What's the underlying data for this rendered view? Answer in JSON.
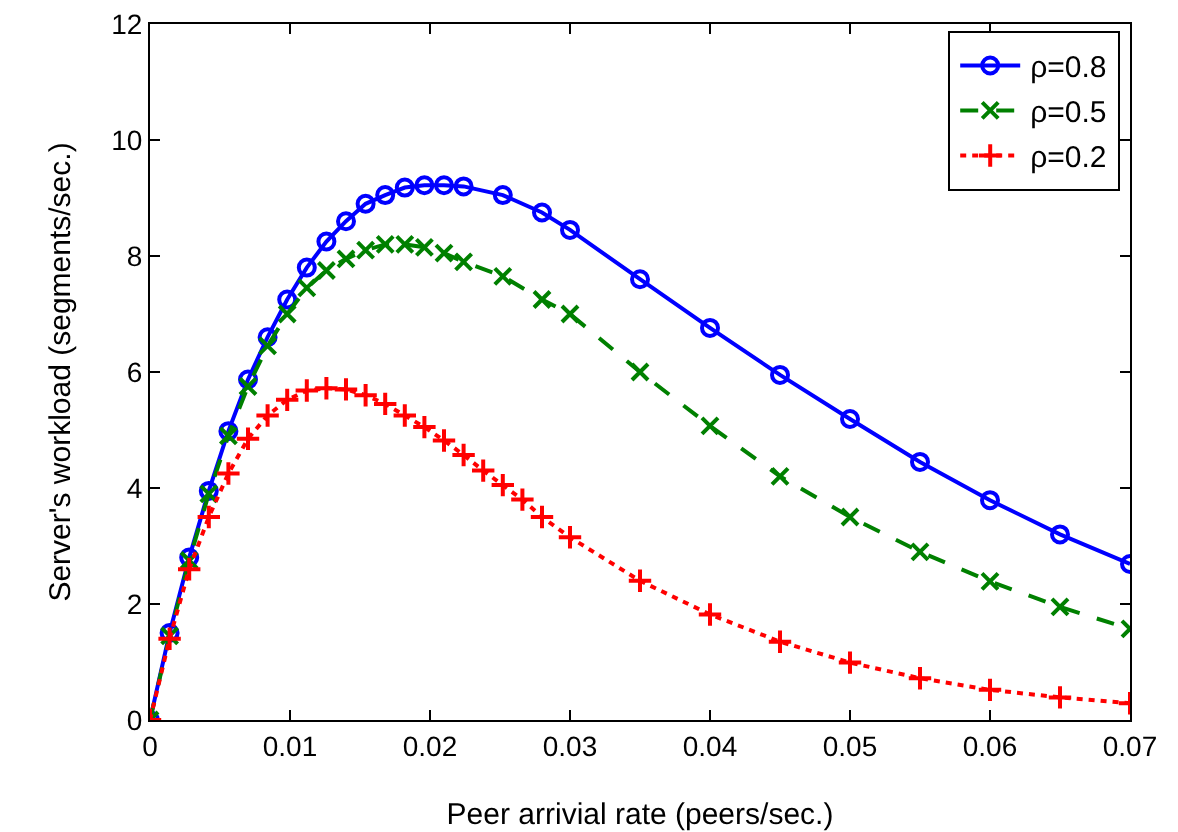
{
  "chart_data": {
    "type": "line",
    "xlabel": "Peer arrivial rate (peers/sec.)",
    "ylabel": "Server's workload (segments/sec.)",
    "xlim": [
      0,
      0.07
    ],
    "xticks": [
      0,
      0.01,
      0.02,
      0.03,
      0.04,
      0.05,
      0.06,
      0.07
    ],
    "ylim": [
      0,
      12
    ],
    "yticks": [
      0,
      2,
      4,
      6,
      8,
      10,
      12
    ],
    "grid": false,
    "legend": "top right",
    "series": [
      {
        "name": "ρ=0.8",
        "color": "#0000ff",
        "marker": "circle",
        "line_style": "solid",
        "x": [
          0,
          0.0014,
          0.0028,
          0.0042,
          0.0056,
          0.007,
          0.0084,
          0.0098,
          0.0112,
          0.0126,
          0.014,
          0.0154,
          0.0168,
          0.0182,
          0.0196,
          0.021,
          0.0224,
          0.0252,
          0.028,
          0.03,
          0.035,
          0.04,
          0.045,
          0.05,
          0.055,
          0.06,
          0.065,
          0.07
        ],
        "values": [
          0,
          1.5,
          2.8,
          3.95,
          4.98,
          5.87,
          6.6,
          7.25,
          7.8,
          8.25,
          8.6,
          8.9,
          9.05,
          9.18,
          9.22,
          9.22,
          9.2,
          9.05,
          8.75,
          8.45,
          7.6,
          6.76,
          5.95,
          5.19,
          4.45,
          3.79,
          3.2,
          2.69
        ]
      },
      {
        "name": "ρ=0.5",
        "color": "#008000",
        "marker": "cross",
        "line_style": "dashed",
        "x": [
          0,
          0.0014,
          0.0028,
          0.0042,
          0.0056,
          0.007,
          0.0084,
          0.0098,
          0.0112,
          0.0126,
          0.014,
          0.0154,
          0.0168,
          0.0182,
          0.0196,
          0.021,
          0.0224,
          0.0252,
          0.028,
          0.03,
          0.035,
          0.04,
          0.045,
          0.05,
          0.055,
          0.06,
          0.065,
          0.07
        ],
        "values": [
          0,
          1.45,
          2.75,
          3.9,
          4.9,
          5.75,
          6.45,
          7.0,
          7.45,
          7.75,
          7.95,
          8.1,
          8.2,
          8.2,
          8.15,
          8.05,
          7.9,
          7.65,
          7.25,
          7.0,
          6.0,
          5.07,
          4.2,
          3.5,
          2.9,
          2.39,
          1.95,
          1.57
        ]
      },
      {
        "name": "ρ=0.2",
        "color": "#ff0000",
        "marker": "plus",
        "line_style": "dotted",
        "x": [
          0,
          0.0014,
          0.0028,
          0.0042,
          0.0056,
          0.007,
          0.0084,
          0.0098,
          0.0112,
          0.0126,
          0.014,
          0.0154,
          0.0168,
          0.0182,
          0.0196,
          0.021,
          0.0224,
          0.0238,
          0.0252,
          0.0266,
          0.028,
          0.03,
          0.035,
          0.04,
          0.045,
          0.05,
          0.055,
          0.06,
          0.065,
          0.07
        ],
        "values": [
          0,
          1.4,
          2.6,
          3.5,
          4.25,
          4.85,
          5.25,
          5.52,
          5.68,
          5.72,
          5.7,
          5.6,
          5.45,
          5.25,
          5.05,
          4.82,
          4.57,
          4.3,
          4.05,
          3.8,
          3.5,
          3.15,
          2.4,
          1.82,
          1.35,
          0.99,
          0.72,
          0.52,
          0.39,
          0.29
        ]
      }
    ]
  }
}
